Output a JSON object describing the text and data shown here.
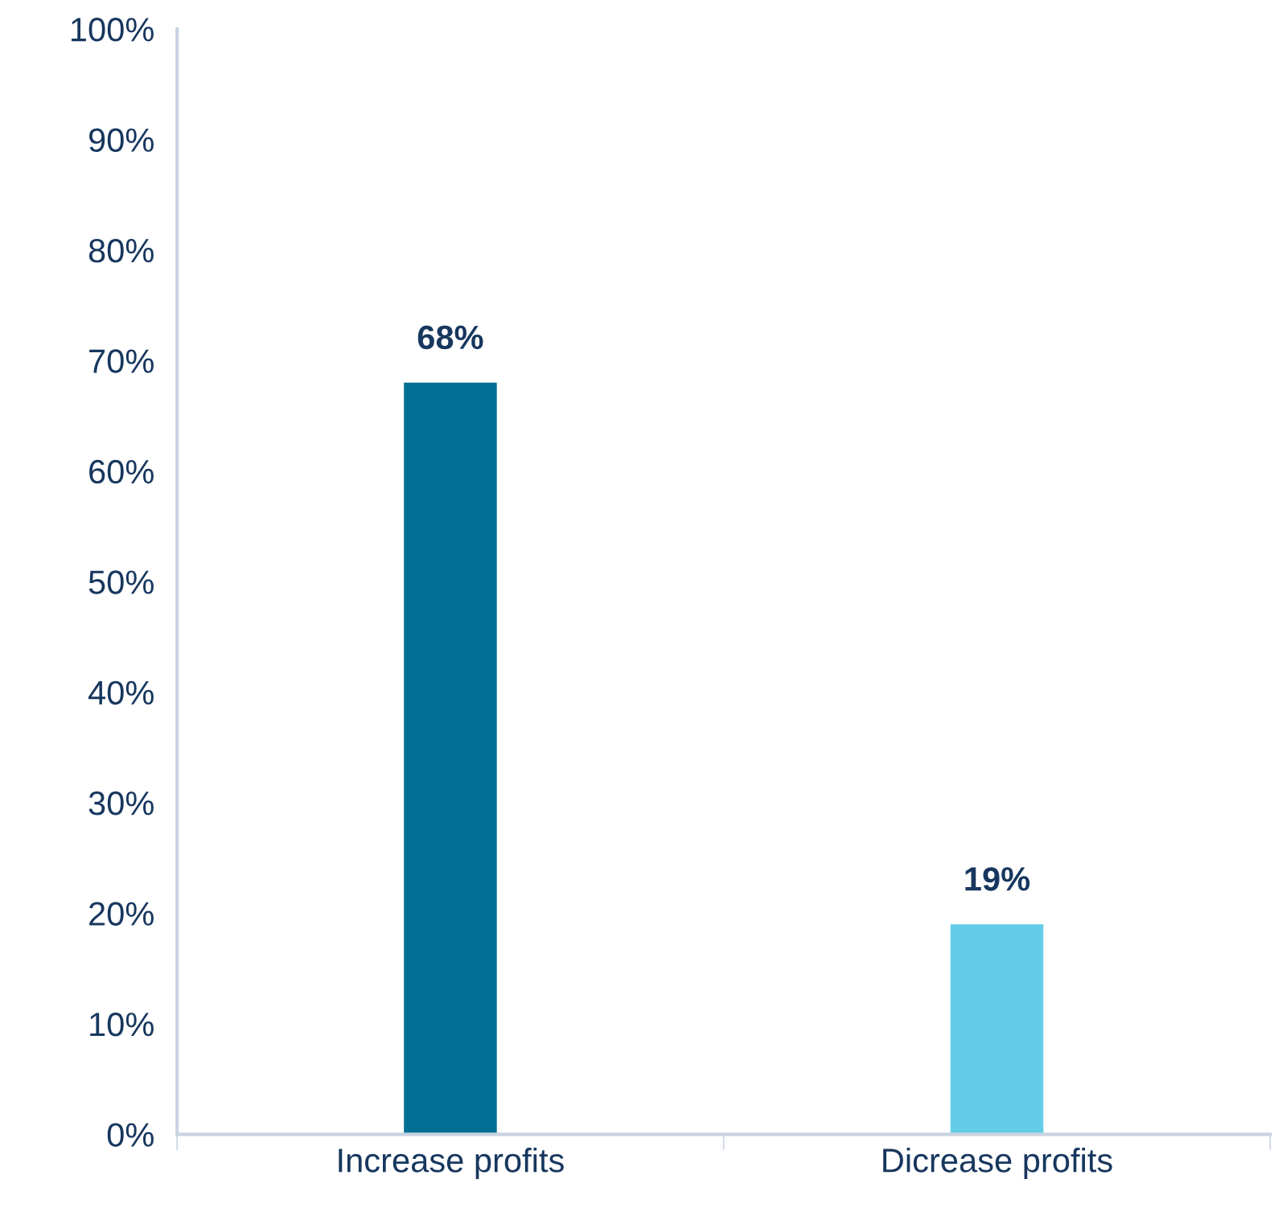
{
  "chart_data": {
    "type": "bar",
    "categories": [
      "Increase profits",
      "Dicrease profits"
    ],
    "values": [
      68,
      19
    ],
    "colors": [
      "#006f94",
      "#63cde8"
    ],
    "value_labels": [
      "68%",
      "19%"
    ],
    "ylim": [
      0,
      100
    ],
    "yticks": [
      {
        "value": 0,
        "label": "0%"
      },
      {
        "value": 10,
        "label": "10%"
      },
      {
        "value": 20,
        "label": "20%"
      },
      {
        "value": 30,
        "label": "30%"
      },
      {
        "value": 40,
        "label": "40%"
      },
      {
        "value": 50,
        "label": "50%"
      },
      {
        "value": 60,
        "label": "60%"
      },
      {
        "value": 70,
        "label": "70%"
      },
      {
        "value": 80,
        "label": "80%"
      },
      {
        "value": 90,
        "label": "90%"
      },
      {
        "value": 100,
        "label": "100%"
      }
    ],
    "grid": false,
    "legend": false
  }
}
